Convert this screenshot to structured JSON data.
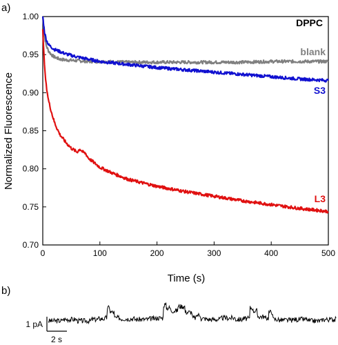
{
  "panel_a_label": "a)",
  "panel_b_label": "b)",
  "chart_data": [
    {
      "type": "line",
      "title": "DPPC",
      "xlabel": "Time (s)",
      "ylabel": "Normalized Fluorescence",
      "xlim": [
        0,
        500
      ],
      "ylim": [
        0.7,
        1.0
      ],
      "x_ticks": [
        "0",
        "100",
        "200",
        "300",
        "400",
        "500"
      ],
      "y_ticks": [
        "0.70",
        "0.75",
        "0.80",
        "0.85",
        "0.90",
        "0.95",
        "1.00"
      ],
      "series": [
        {
          "name": "blank",
          "color": "#808080",
          "x": [
            0,
            3,
            6,
            10,
            15,
            20,
            30,
            40,
            60,
            80,
            100,
            150,
            200,
            250,
            300,
            350,
            400,
            450,
            500
          ],
          "y": [
            1.0,
            0.975,
            0.962,
            0.955,
            0.95,
            0.947,
            0.944,
            0.943,
            0.942,
            0.941,
            0.941,
            0.94,
            0.94,
            0.94,
            0.94,
            0.94,
            0.941,
            0.941,
            0.941
          ]
        },
        {
          "name": "S3",
          "color": "#1010d0",
          "x": [
            0,
            3,
            6,
            10,
            15,
            20,
            30,
            40,
            60,
            80,
            100,
            150,
            200,
            250,
            300,
            350,
            400,
            450,
            500
          ],
          "y": [
            1.0,
            0.98,
            0.97,
            0.963,
            0.96,
            0.957,
            0.954,
            0.951,
            0.947,
            0.944,
            0.941,
            0.937,
            0.933,
            0.93,
            0.927,
            0.924,
            0.921,
            0.918,
            0.916
          ]
        },
        {
          "name": "L3",
          "color": "#e01010",
          "x": [
            0,
            2,
            4,
            6,
            8,
            10,
            15,
            20,
            25,
            30,
            40,
            50,
            60,
            65,
            70,
            75,
            80,
            90,
            100,
            120,
            150,
            200,
            250,
            300,
            350,
            400,
            450,
            500
          ],
          "y": [
            0.985,
            0.95,
            0.925,
            0.91,
            0.9,
            0.89,
            0.875,
            0.862,
            0.853,
            0.845,
            0.835,
            0.827,
            0.822,
            0.826,
            0.822,
            0.82,
            0.814,
            0.808,
            0.802,
            0.795,
            0.786,
            0.777,
            0.77,
            0.764,
            0.758,
            0.753,
            0.748,
            0.744
          ]
        }
      ]
    },
    {
      "type": "line",
      "title": "",
      "scale_bar_y": "1 pA",
      "scale_bar_x": "2 s",
      "series": [
        {
          "color": "#000000",
          "x": [
            0,
            1,
            2,
            3,
            3.5,
            4,
            4.1,
            4.3,
            4.6,
            5,
            6,
            7,
            7.5,
            8,
            8.2,
            8.5,
            9,
            9.5,
            10,
            10.3,
            10.6,
            11,
            12,
            13,
            13.5,
            14,
            14.2,
            14.5,
            15,
            15.3,
            15.6,
            16,
            17,
            18,
            19,
            20
          ],
          "y": [
            0.0,
            0.1,
            0.0,
            0.1,
            0.15,
            0.2,
            0.9,
            0.6,
            0.2,
            0.15,
            0.1,
            0.15,
            0.2,
            1.1,
            0.9,
            0.7,
            1.0,
            0.6,
            0.2,
            0.4,
            0.15,
            0.1,
            0.2,
            0.1,
            0.15,
            0.9,
            0.7,
            0.3,
            0.2,
            0.6,
            0.1,
            0.05,
            0.1,
            0.0,
            0.1,
            0.05
          ]
        }
      ]
    }
  ]
}
